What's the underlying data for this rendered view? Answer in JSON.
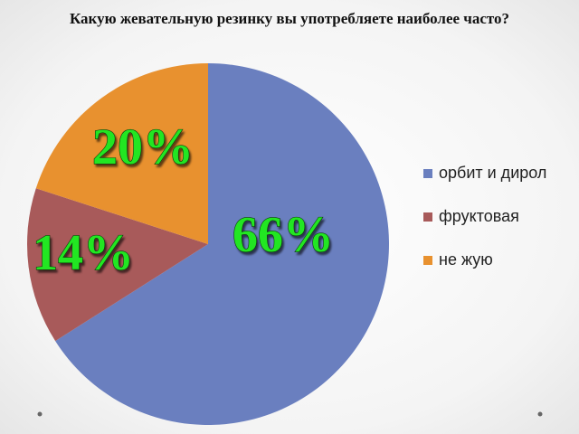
{
  "chart_data": {
    "type": "pie",
    "title": "Какую жевательную резинку вы употребляете наиболее часто?",
    "categories": [
      "орбит и дирол",
      "фруктовая",
      "не жую"
    ],
    "values": [
      66,
      14,
      20
    ],
    "value_labels": [
      "66%",
      "14%",
      "20%"
    ],
    "colors": [
      "#6a7fbf",
      "#a85a5a",
      "#e8912f"
    ],
    "legend": "right"
  }
}
